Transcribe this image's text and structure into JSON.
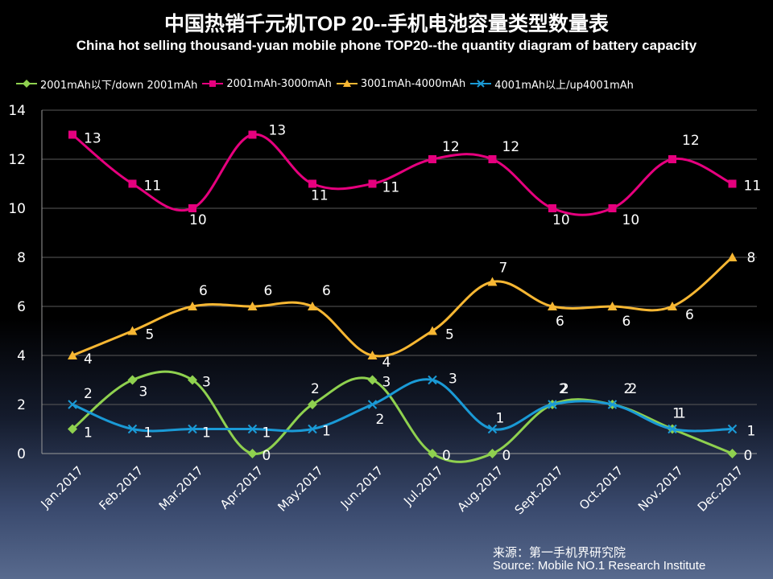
{
  "header": {
    "title": "中国热销千元机TOP 20--手机电池容量类型数量表",
    "subtitle": "China hot selling thousand-yuan mobile phone TOP20--the quantity diagram of battery capacity"
  },
  "footer": {
    "source_cn": "来源：第一手机界研究院",
    "source_en": "Source: Mobile NO.1 Research Institute"
  },
  "chart_data": {
    "type": "line",
    "categories": [
      "Jan.2017",
      "Feb.2017",
      "Mar.2017",
      "Apr.2017",
      "May.2017",
      "Jun.2017",
      "Jul.2017",
      "Aug.2017",
      "Sept.2017",
      "Oct.2017",
      "Nov.2017",
      "Dec.2017"
    ],
    "ylim": [
      0,
      14
    ],
    "yticks": [
      0,
      2,
      4,
      6,
      8,
      10,
      12,
      14
    ],
    "grid": true,
    "smoothed": true,
    "legend_position": "top",
    "series": [
      {
        "name": "2001mAh以下/down 2001mAh",
        "color": "#8fd14f",
        "marker": "diamond",
        "values": [
          1,
          3,
          3,
          0,
          2,
          3,
          0,
          0,
          2,
          2,
          1,
          0
        ]
      },
      {
        "name": "2001mAh-3000mAh",
        "color": "#e6007e",
        "marker": "square",
        "values": [
          13,
          11,
          10,
          13,
          11,
          11,
          12,
          12,
          10,
          10,
          12,
          11
        ]
      },
      {
        "name": "3001mAh-4000mAh",
        "color": "#f7b733",
        "marker": "triangle",
        "values": [
          4,
          5,
          6,
          6,
          6,
          4,
          5,
          7,
          6,
          6,
          6,
          8
        ]
      },
      {
        "name": "4001mAh以上/up4001mAh",
        "color": "#1a9ad6",
        "marker": "x",
        "values": [
          2,
          1,
          1,
          1,
          1,
          2,
          3,
          1,
          2,
          2,
          1,
          1
        ]
      }
    ]
  }
}
